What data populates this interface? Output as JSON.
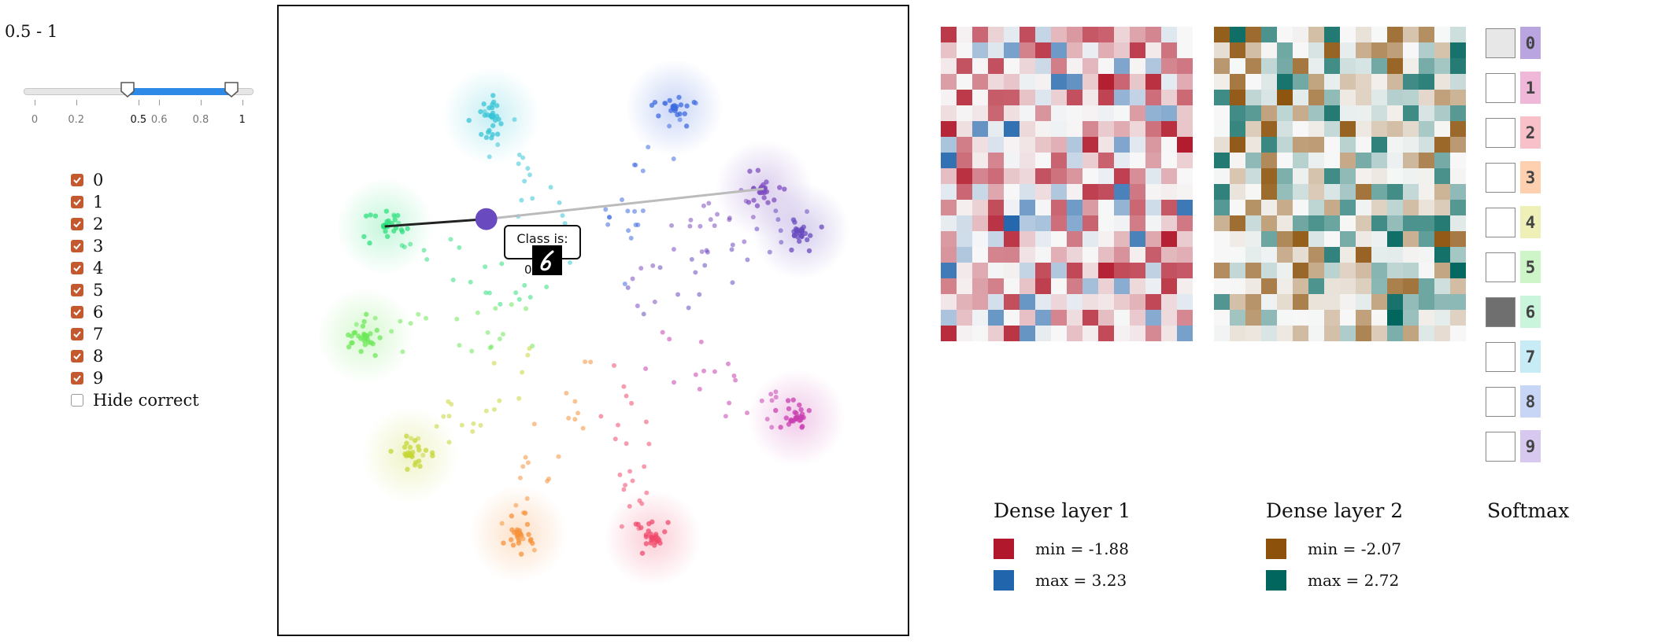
{
  "range_label": "0.5 - 1",
  "slider": {
    "min": 0,
    "max": 1.1,
    "value_low": 0.5,
    "value_high": 1,
    "ticks": [
      {
        "value": 0,
        "label": "0",
        "strong": false
      },
      {
        "value": 0.2,
        "label": "0.2",
        "strong": false
      },
      {
        "value": 0.5,
        "label": "0.5",
        "strong": true
      },
      {
        "value": 0.6,
        "label": "0.6",
        "strong": false
      },
      {
        "value": 0.8,
        "label": "0.8",
        "strong": false
      },
      {
        "value": 1,
        "label": "1",
        "strong": true
      }
    ]
  },
  "class_filter": [
    {
      "label": "0",
      "checked": true
    },
    {
      "label": "1",
      "checked": true
    },
    {
      "label": "2",
      "checked": true
    },
    {
      "label": "3",
      "checked": true
    },
    {
      "label": "4",
      "checked": true
    },
    {
      "label": "5",
      "checked": true
    },
    {
      "label": "6",
      "checked": true
    },
    {
      "label": "7",
      "checked": true
    },
    {
      "label": "8",
      "checked": true
    },
    {
      "label": "9",
      "checked": true
    },
    {
      "label": "Hide correct",
      "checked": false
    }
  ],
  "classes": [
    {
      "digit": "0",
      "color": "#b9a6e0",
      "cluster_color": "#6a4bbf"
    },
    {
      "digit": "1",
      "color": "#f0b8d8",
      "cluster_color": "#c93fb0"
    },
    {
      "digit": "2",
      "color": "#f8c0c8",
      "cluster_color": "#f04a6c"
    },
    {
      "digit": "3",
      "color": "#ffd0b0",
      "cluster_color": "#f5913a"
    },
    {
      "digit": "4",
      "color": "#eef0b8",
      "cluster_color": "#c6d636"
    },
    {
      "digit": "5",
      "color": "#cdf5c8",
      "cluster_color": "#6ee85a"
    },
    {
      "digit": "6",
      "color": "#c8f5dc",
      "cluster_color": "#2fe07e"
    },
    {
      "digit": "7",
      "color": "#c8ecf5",
      "cluster_color": "#36c4d6"
    },
    {
      "digit": "8",
      "color": "#c8d6f5",
      "cluster_color": "#3f6be0"
    },
    {
      "digit": "9",
      "color": "#d6c8ee",
      "cluster_color": "#7f4fc0"
    }
  ],
  "tooltip": {
    "title": "Class is:",
    "true_label": "0"
  },
  "dense1": {
    "title": "Dense layer 1",
    "min_label": "min = -1.88",
    "max_label": "max = 3.23",
    "min_value": -1.88,
    "max_value": 3.23,
    "min_color": "#b2182b",
    "max_color": "#2166ac",
    "rows": 20,
    "cols": 16
  },
  "dense2": {
    "title": "Dense layer 2",
    "min_label": "min = -2.07",
    "max_label": "max = 2.72",
    "min_value": -2.07,
    "max_value": 2.72,
    "min_color": "#8c510a",
    "max_color": "#01665e",
    "rows": 20,
    "cols": 16
  },
  "softmax": {
    "title": "Softmax",
    "values": [
      0.12,
      0,
      0,
      0,
      0,
      0,
      0.72,
      0,
      0,
      0
    ]
  }
}
